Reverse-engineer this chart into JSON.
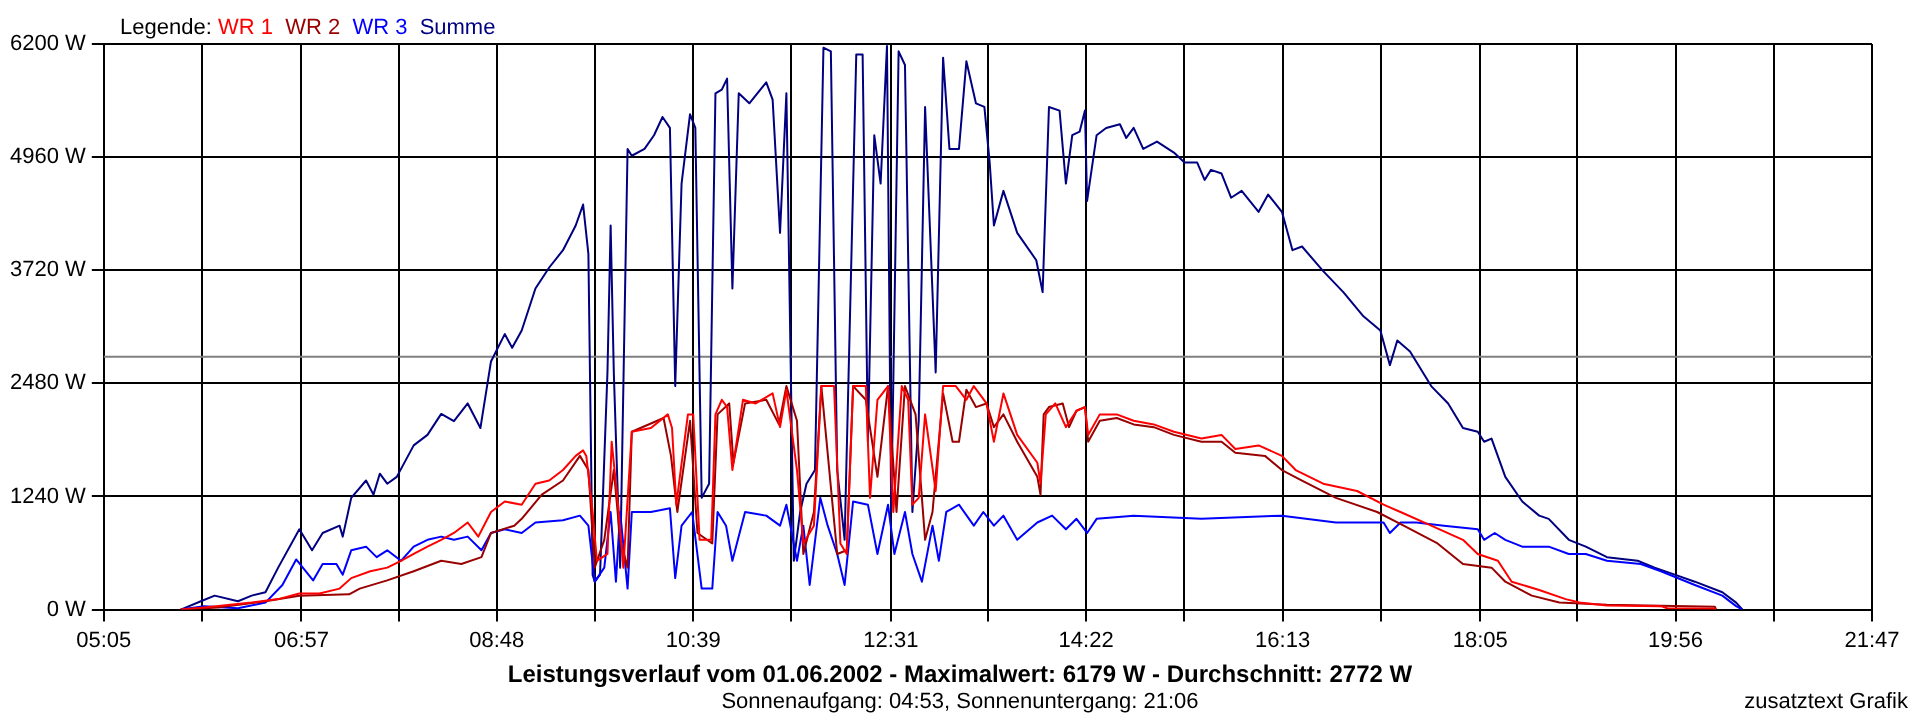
{
  "chart_data": {
    "type": "line",
    "title": "Leistungsverlauf vom 01.06.2002 - Maximalwert: 6179 W - Durchschnitt: 2772 W",
    "subtitle": "Sonnenaufgang: 04:53, Sonnenuntergang: 21:06",
    "annotations": [
      "zusatztext Grafik"
    ],
    "legend_title": "Legende:",
    "legend": "top left",
    "grid": true,
    "marker": "none",
    "xlim": [
      5.0833,
      21.7833
    ],
    "xticks": [
      {
        "value": 5.0833,
        "label": "05:05"
      },
      {
        "value": 6.0111,
        "label": null
      },
      {
        "value": 6.95,
        "label": "06:57"
      },
      {
        "value": 7.8667,
        "label": null
      },
      {
        "value": 8.7944,
        "label": "08:48"
      },
      {
        "value": 9.7222,
        "label": null
      },
      {
        "value": 10.65,
        "label": "10:39"
      },
      {
        "value": 11.5778,
        "label": null
      },
      {
        "value": 12.5167,
        "label": "12:31"
      },
      {
        "value": 13.4333,
        "label": null
      },
      {
        "value": 14.3611,
        "label": "14:22"
      },
      {
        "value": 15.2889,
        "label": null
      },
      {
        "value": 16.2167,
        "label": "16:13"
      },
      {
        "value": 17.1444,
        "label": null
      },
      {
        "value": 18.0833,
        "label": "18:05"
      },
      {
        "value": 19.0,
        "label": null
      },
      {
        "value": 19.9278,
        "label": "19:56"
      },
      {
        "value": 20.8556,
        "label": null
      },
      {
        "value": 21.7833,
        "label": "21:47"
      }
    ],
    "ylim": [
      0,
      6200
    ],
    "yticks": [
      {
        "value": 0,
        "label": "0 W"
      },
      {
        "value": 1240,
        "label": "1240 W"
      },
      {
        "value": 2480,
        "label": "2480 W"
      },
      {
        "value": 3720,
        "label": "3720 W"
      },
      {
        "value": 4960,
        "label": "4960 W"
      },
      {
        "value": 6200,
        "label": "6200 W"
      }
    ],
    "ref_lines": [
      {
        "axis": "y",
        "value": 2772,
        "label": null,
        "color": "#808080"
      }
    ],
    "series": [
      {
        "name": "WR 1",
        "color": "#ff0000",
        "x": [
          5.81,
          6.03,
          6.48,
          6.73,
          6.93,
          7.12,
          7.31,
          7.42,
          7.6,
          7.76,
          7.89,
          8.01,
          8.14,
          8.27,
          8.39,
          8.52,
          8.62,
          8.74,
          8.87,
          9.03,
          9.16,
          9.29,
          9.42,
          9.54,
          9.61,
          9.64,
          9.7,
          9.74,
          9.84,
          9.88,
          9.94,
          9.99,
          10.07,
          10.25,
          10.41,
          10.45,
          10.49,
          10.6,
          10.65,
          10.71,
          10.82,
          10.86,
          10.92,
          10.97,
          11.02,
          11.12,
          11.24,
          11.4,
          11.47,
          11.53,
          11.63,
          11.69,
          11.79,
          11.86,
          11.98,
          12.04,
          12.1,
          12.16,
          12.28,
          12.32,
          12.39,
          12.49,
          12.54,
          12.62,
          12.68,
          12.72,
          12.78,
          12.84,
          12.94,
          13.01,
          13.13,
          13.23,
          13.3,
          13.42,
          13.49,
          13.58,
          13.71,
          13.9,
          13.93,
          13.98,
          14.07,
          14.17,
          14.27,
          14.35,
          14.38,
          14.49,
          14.65,
          14.81,
          15.0,
          15.19,
          15.45,
          15.64,
          15.77,
          15.99,
          16.21,
          16.34,
          16.6,
          16.92,
          17.17,
          17.33,
          17.62,
          17.92,
          18.06,
          18.25,
          18.38,
          18.64,
          18.89,
          19.02,
          19.28,
          19.79,
          19.85,
          20.3,
          20.31
        ],
        "values": [
          0,
          23,
          77,
          115,
          176,
          176,
          230,
          345,
          420,
          460,
          535,
          610,
          690,
          765,
          840,
          955,
          800,
          1070,
          1185,
          1150,
          1380,
          1415,
          1530,
          1685,
          1745,
          1685,
          1070,
          535,
          610,
          1840,
          1150,
          460,
          1950,
          1990,
          2140,
          1990,
          1150,
          2140,
          2140,
          765,
          765,
          2140,
          2300,
          2220,
          1530,
          2300,
          2260,
          2370,
          2000,
          2410,
          1530,
          725,
          920,
          2450,
          2450,
          725,
          610,
          2450,
          2450,
          1225,
          2300,
          2450,
          1070,
          2450,
          2300,
          1150,
          1225,
          2140,
          1300,
          2450,
          2450,
          2300,
          2450,
          2260,
          1840,
          2370,
          1915,
          1610,
          1380,
          2140,
          2260,
          2000,
          2180,
          2220,
          1915,
          2140,
          2140,
          2070,
          2030,
          1950,
          1875,
          1915,
          1760,
          1800,
          1685,
          1530,
          1380,
          1300,
          1150,
          1070,
          920,
          765,
          610,
          535,
          306,
          215,
          115,
          77,
          46,
          38,
          15,
          8,
          0
        ]
      },
      {
        "name": "WR 2",
        "color": "#990000",
        "x": [
          5.81,
          6.16,
          6.61,
          6.93,
          7.4,
          7.5,
          7.76,
          8.01,
          8.27,
          8.46,
          8.65,
          8.74,
          8.96,
          9.03,
          9.22,
          9.42,
          9.58,
          9.66,
          9.72,
          9.81,
          9.9,
          9.96,
          10.03,
          10.07,
          10.37,
          10.44,
          10.5,
          10.62,
          10.69,
          10.83,
          10.88,
          10.99,
          11.03,
          11.14,
          11.34,
          11.46,
          11.53,
          11.63,
          11.69,
          11.79,
          11.86,
          12.01,
          12.1,
          12.16,
          12.28,
          12.39,
          12.49,
          12.57,
          12.65,
          12.75,
          12.84,
          12.91,
          13.01,
          13.1,
          13.16,
          13.23,
          13.32,
          13.42,
          13.49,
          13.58,
          13.71,
          13.9,
          13.93,
          13.96,
          14.01,
          14.14,
          14.2,
          14.27,
          14.35,
          14.38,
          14.49,
          14.65,
          14.81,
          15.0,
          15.19,
          15.45,
          15.64,
          15.77,
          16.05,
          16.21,
          16.4,
          16.72,
          17.11,
          17.36,
          17.68,
          17.92,
          18.19,
          18.32,
          18.57,
          18.83,
          19.28,
          20.3,
          20.31
        ],
        "values": [
          0,
          23,
          92,
          153,
          168,
          230,
          320,
          420,
          535,
          500,
          575,
          840,
          920,
          995,
          1260,
          1415,
          1685,
          1530,
          460,
          765,
          1530,
          765,
          460,
          1950,
          2100,
          1685,
          1070,
          2070,
          840,
          725,
          2140,
          2260,
          1610,
          2260,
          2300,
          2030,
          2450,
          2070,
          610,
          1070,
          2450,
          610,
          650,
          2450,
          2300,
          1455,
          2450,
          1070,
          2450,
          2140,
          765,
          1070,
          2370,
          1840,
          1840,
          2410,
          2220,
          2260,
          2000,
          2140,
          1840,
          1455,
          1260,
          2140,
          2220,
          2260,
          2000,
          2180,
          2220,
          1840,
          2070,
          2100,
          2030,
          2000,
          1915,
          1840,
          1840,
          1720,
          1685,
          1530,
          1415,
          1225,
          1070,
          920,
          725,
          500,
          460,
          306,
          153,
          77,
          54,
          31,
          0
        ]
      },
      {
        "name": "WR 3",
        "color": "#0000ff",
        "x": [
          5.81,
          6.03,
          6.35,
          6.61,
          6.77,
          6.9,
          7.06,
          7.15,
          7.28,
          7.34,
          7.42,
          7.56,
          7.66,
          7.76,
          7.89,
          8.01,
          8.14,
          8.27,
          8.39,
          8.52,
          8.65,
          8.74,
          8.87,
          9.03,
          9.16,
          9.42,
          9.58,
          9.66,
          9.72,
          9.81,
          9.87,
          9.92,
          9.96,
          10.03,
          10.07,
          10.25,
          10.43,
          10.48,
          10.54,
          10.64,
          10.73,
          10.83,
          10.88,
          10.96,
          11.02,
          11.14,
          11.34,
          11.47,
          11.53,
          11.63,
          11.69,
          11.75,
          11.85,
          11.92,
          12.01,
          12.08,
          12.16,
          12.3,
          12.39,
          12.49,
          12.55,
          12.65,
          12.72,
          12.81,
          12.91,
          12.97,
          13.04,
          13.16,
          13.3,
          13.39,
          13.49,
          13.58,
          13.71,
          13.9,
          14.04,
          14.17,
          14.27,
          14.37,
          14.46,
          14.81,
          15.45,
          16.21,
          16.72,
          17.17,
          17.23,
          17.33,
          17.48,
          17.74,
          18.06,
          18.12,
          18.22,
          18.32,
          18.48,
          18.73,
          18.92,
          19.08,
          19.28,
          19.6,
          19.79,
          20.11,
          20.37,
          20.5,
          20.56
        ],
        "values": [
          0,
          38,
          15,
          77,
          270,
          550,
          320,
          500,
          500,
          383,
          650,
          690,
          575,
          650,
          535,
          690,
          765,
          800,
          765,
          800,
          650,
          840,
          880,
          840,
          955,
          980,
          1030,
          920,
          306,
          460,
          1070,
          306,
          1070,
          230,
          1070,
          1070,
          1110,
          345,
          920,
          1070,
          230,
          230,
          1070,
          920,
          535,
          1070,
          1030,
          920,
          1150,
          535,
          920,
          270,
          1225,
          920,
          610,
          270,
          1185,
          1150,
          610,
          1150,
          610,
          1070,
          610,
          306,
          920,
          535,
          1070,
          1150,
          920,
          1070,
          920,
          1030,
          765,
          955,
          1030,
          880,
          995,
          840,
          995,
          1030,
          995,
          1030,
          955,
          955,
          840,
          955,
          955,
          920,
          880,
          765,
          840,
          765,
          690,
          690,
          610,
          610,
          535,
          500,
          420,
          270,
          153,
          38,
          0
        ]
      },
      {
        "name": "Summe",
        "color": "#000080",
        "x": [
          5.81,
          6.0,
          6.13,
          6.35,
          6.48,
          6.61,
          6.73,
          6.93,
          7.05,
          7.15,
          7.31,
          7.34,
          7.42,
          7.56,
          7.63,
          7.69,
          7.76,
          7.85,
          8.01,
          8.14,
          8.27,
          8.39,
          8.52,
          8.64,
          8.74,
          8.87,
          8.94,
          9.03,
          9.16,
          9.29,
          9.42,
          9.54,
          9.61,
          9.66,
          9.7,
          9.72,
          9.77,
          9.84,
          9.87,
          9.9,
          9.96,
          10.03,
          10.07,
          10.19,
          10.28,
          10.36,
          10.43,
          10.48,
          10.54,
          10.62,
          10.67,
          10.73,
          10.8,
          10.86,
          10.92,
          10.97,
          11.02,
          11.08,
          11.18,
          11.34,
          11.4,
          11.47,
          11.53,
          11.6,
          11.66,
          11.72,
          11.8,
          11.88,
          11.95,
          12.01,
          12.08,
          12.19,
          12.25,
          12.3,
          12.36,
          12.42,
          12.48,
          12.52,
          12.59,
          12.65,
          12.72,
          12.78,
          12.84,
          12.94,
          13.01,
          13.07,
          13.16,
          13.23,
          13.32,
          13.4,
          13.45,
          13.49,
          13.58,
          13.71,
          13.89,
          13.95,
          14.01,
          14.11,
          14.17,
          14.23,
          14.3,
          14.35,
          14.37,
          14.46,
          14.55,
          14.68,
          14.74,
          14.81,
          14.9,
          15.03,
          15.19,
          15.29,
          15.41,
          15.48,
          15.54,
          15.64,
          15.73,
          15.83,
          15.99,
          16.08,
          16.21,
          16.31,
          16.4,
          16.6,
          16.79,
          16.98,
          17.14,
          17.23,
          17.3,
          17.42,
          17.62,
          17.78,
          17.92,
          18.06,
          18.12,
          18.19,
          18.32,
          18.48,
          18.64,
          18.73,
          18.92,
          19.08,
          19.28,
          19.57,
          19.73,
          19.92,
          20.11,
          20.37,
          20.5,
          20.56
        ],
        "values": [
          0,
          92,
          153,
          92,
          153,
          190,
          460,
          880,
          650,
          840,
          920,
          800,
          1225,
          1415,
          1260,
          1490,
          1380,
          1455,
          1800,
          1915,
          2145,
          2065,
          2260,
          1990,
          2720,
          3020,
          2870,
          3060,
          3520,
          3750,
          3940,
          4210,
          4440,
          3900,
          380,
          306,
          383,
          2600,
          4210,
          2600,
          460,
          5050,
          4975,
          5050,
          5200,
          5400,
          5280,
          2450,
          4670,
          5430,
          5280,
          1225,
          1380,
          5660,
          5700,
          5820,
          3520,
          5660,
          5550,
          5780,
          5590,
          4130,
          5660,
          535,
          1070,
          1380,
          1530,
          6160,
          6120,
          1530,
          765,
          6085,
          6085,
          1840,
          5200,
          4670,
          6179,
          1070,
          6120,
          5970,
          1070,
          2070,
          5510,
          2600,
          6050,
          5050,
          5050,
          6010,
          5550,
          5510,
          4900,
          4210,
          4590,
          4130,
          3830,
          3480,
          5510,
          5470,
          4670,
          5200,
          5240,
          5470,
          4480,
          5200,
          5280,
          5320,
          5170,
          5280,
          5050,
          5130,
          5010,
          4900,
          4900,
          4710,
          4820,
          4780,
          4515,
          4590,
          4360,
          4550,
          4360,
          3940,
          3980,
          3710,
          3480,
          3215,
          3060,
          2680,
          2950,
          2830,
          2450,
          2260,
          1990,
          1950,
          1840,
          1875,
          1455,
          1185,
          1030,
          995,
          765,
          690,
          575,
          535,
          460,
          383,
          306,
          190,
          77,
          0
        ]
      }
    ]
  }
}
